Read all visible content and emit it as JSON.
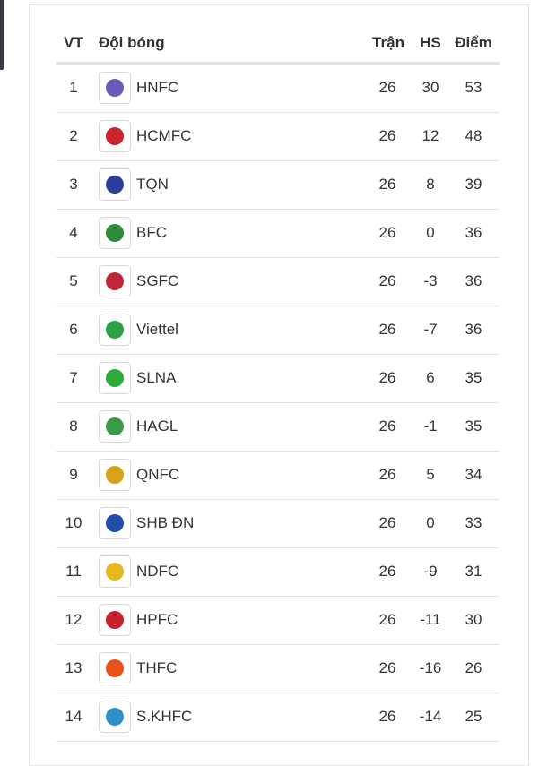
{
  "table": {
    "headers": [
      "VT",
      "Đội bóng",
      "Trận",
      "HS",
      "Điểm"
    ],
    "rows": [
      [
        1,
        "HNFC",
        26,
        30,
        53
      ],
      [
        2,
        "HCMFC",
        26,
        12,
        48
      ],
      [
        3,
        "TQN",
        26,
        8,
        39
      ],
      [
        4,
        "BFC",
        26,
        0,
        36
      ],
      [
        5,
        "SGFC",
        26,
        -3,
        36
      ],
      [
        6,
        "Viettel",
        26,
        -7,
        36
      ],
      [
        7,
        "SLNA",
        26,
        6,
        35
      ],
      [
        8,
        "HAGL",
        26,
        -1,
        35
      ],
      [
        9,
        "QNFC",
        26,
        5,
        34
      ],
      [
        10,
        "SHB ĐN",
        26,
        0,
        33
      ],
      [
        11,
        "NDFC",
        26,
        -9,
        31
      ],
      [
        12,
        "HPFC",
        26,
        -11,
        30
      ],
      [
        13,
        "THFC",
        26,
        -16,
        26
      ],
      [
        14,
        "S.KHFC",
        26,
        -14,
        25
      ]
    ]
  }
}
